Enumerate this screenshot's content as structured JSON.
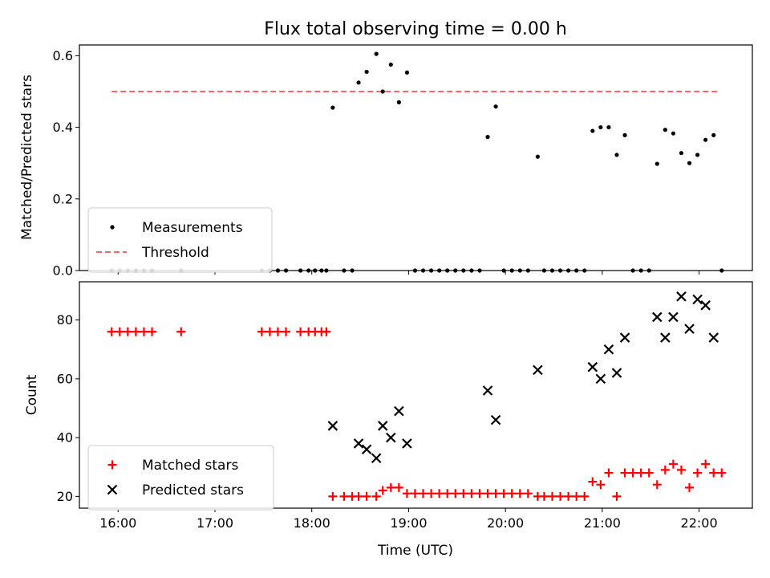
{
  "chart_data": [
    {
      "type": "scatter",
      "title": "Flux total observing time = 0.00 h",
      "xlabel": "",
      "ylabel": "Matched/Predicted stars",
      "xlim": [
        "15:36",
        "22:33"
      ],
      "ylim": [
        0,
        0.63
      ],
      "yticks": [
        0.0,
        0.2,
        0.4,
        0.6
      ],
      "ytick_labels": [
        "0.0",
        "0.2",
        "0.4",
        "0.6"
      ],
      "legend_position": "lower-left",
      "threshold": {
        "name": "Threshold",
        "value": 0.5,
        "x_start": "15:56",
        "x_end": "22:12",
        "color": "#ff6666",
        "style": "dashed"
      },
      "series": [
        {
          "name": "Measurements",
          "color": "#000000",
          "marker": "dot",
          "points": [
            [
              "15:56",
              0
            ],
            [
              "16:01",
              0
            ],
            [
              "16:06",
              0
            ],
            [
              "16:11",
              0
            ],
            [
              "16:16",
              0
            ],
            [
              "16:21",
              0
            ],
            [
              "16:39",
              0
            ],
            [
              "17:29",
              0
            ],
            [
              "17:34",
              0
            ],
            [
              "17:39",
              0
            ],
            [
              "17:44",
              0
            ],
            [
              "17:53",
              0
            ],
            [
              "17:58",
              0
            ],
            [
              "18:02",
              0
            ],
            [
              "18:06",
              0
            ],
            [
              "18:09",
              0
            ],
            [
              "18:13",
              0.455
            ],
            [
              "18:20",
              0
            ],
            [
              "18:25",
              0
            ],
            [
              "18:29",
              0.525
            ],
            [
              "18:34",
              0.555
            ],
            [
              "18:40",
              0.605
            ],
            [
              "18:44",
              0.5
            ],
            [
              "18:49",
              0.575
            ],
            [
              "18:54",
              0.47
            ],
            [
              "18:59",
              0.553
            ],
            [
              "19:04",
              0
            ],
            [
              "19:09",
              0
            ],
            [
              "19:14",
              0
            ],
            [
              "19:19",
              0
            ],
            [
              "19:24",
              0
            ],
            [
              "19:29",
              0
            ],
            [
              "19:34",
              0
            ],
            [
              "19:39",
              0
            ],
            [
              "19:44",
              0
            ],
            [
              "19:49",
              0.373
            ],
            [
              "19:54",
              0.458
            ],
            [
              "19:59",
              0
            ],
            [
              "20:04",
              0
            ],
            [
              "20:09",
              0
            ],
            [
              "20:14",
              0
            ],
            [
              "20:20",
              0.318
            ],
            [
              "20:24",
              0
            ],
            [
              "20:29",
              0
            ],
            [
              "20:34",
              0
            ],
            [
              "20:39",
              0
            ],
            [
              "20:44",
              0
            ],
            [
              "20:49",
              0
            ],
            [
              "20:54",
              0.39
            ],
            [
              "20:59",
              0.4
            ],
            [
              "21:04",
              0.4
            ],
            [
              "21:09",
              0.323
            ],
            [
              "21:14",
              0.378
            ],
            [
              "21:19",
              0
            ],
            [
              "21:24",
              0
            ],
            [
              "21:29",
              0
            ],
            [
              "21:34",
              0.298
            ],
            [
              "21:39",
              0.393
            ],
            [
              "21:44",
              0.383
            ],
            [
              "21:49",
              0.328
            ],
            [
              "21:54",
              0.3
            ],
            [
              "21:59",
              0.323
            ],
            [
              "22:04",
              0.365
            ],
            [
              "22:09",
              0.378
            ],
            [
              "22:14",
              0
            ]
          ]
        }
      ]
    },
    {
      "type": "scatter",
      "title": "",
      "xlabel": "Time (UTC)",
      "ylabel": "Count",
      "xlim": [
        "15:36",
        "22:33"
      ],
      "ylim": [
        16,
        93
      ],
      "xticks": [
        "16:00",
        "17:00",
        "18:00",
        "19:00",
        "20:00",
        "21:00",
        "22:00"
      ],
      "yticks": [
        20,
        40,
        60,
        80
      ],
      "ytick_labels": [
        "20",
        "40",
        "60",
        "80"
      ],
      "legend_position": "lower-left",
      "series": [
        {
          "name": "Matched stars",
          "color": "#ff0000",
          "marker": "plus",
          "points": [
            [
              "15:56",
              76
            ],
            [
              "16:01",
              76
            ],
            [
              "16:06",
              76
            ],
            [
              "16:11",
              76
            ],
            [
              "16:16",
              76
            ],
            [
              "16:21",
              76
            ],
            [
              "16:39",
              76
            ],
            [
              "17:29",
              76
            ],
            [
              "17:34",
              76
            ],
            [
              "17:39",
              76
            ],
            [
              "17:44",
              76
            ],
            [
              "17:53",
              76
            ],
            [
              "17:58",
              76
            ],
            [
              "18:02",
              76
            ],
            [
              "18:06",
              76
            ],
            [
              "18:09",
              76
            ],
            [
              "18:13",
              20
            ],
            [
              "18:20",
              20
            ],
            [
              "18:25",
              20
            ],
            [
              "18:29",
              20
            ],
            [
              "18:34",
              20
            ],
            [
              "18:40",
              20
            ],
            [
              "18:44",
              22
            ],
            [
              "18:49",
              23
            ],
            [
              "18:54",
              23
            ],
            [
              "18:59",
              21
            ],
            [
              "19:04",
              21
            ],
            [
              "19:09",
              21
            ],
            [
              "19:14",
              21
            ],
            [
              "19:19",
              21
            ],
            [
              "19:24",
              21
            ],
            [
              "19:29",
              21
            ],
            [
              "19:34",
              21
            ],
            [
              "19:39",
              21
            ],
            [
              "19:44",
              21
            ],
            [
              "19:49",
              21
            ],
            [
              "19:54",
              21
            ],
            [
              "19:59",
              21
            ],
            [
              "20:04",
              21
            ],
            [
              "20:09",
              21
            ],
            [
              "20:14",
              21
            ],
            [
              "20:20",
              20
            ],
            [
              "20:24",
              20
            ],
            [
              "20:29",
              20
            ],
            [
              "20:34",
              20
            ],
            [
              "20:39",
              20
            ],
            [
              "20:44",
              20
            ],
            [
              "20:49",
              20
            ],
            [
              "20:54",
              25
            ],
            [
              "20:59",
              24
            ],
            [
              "21:04",
              28
            ],
            [
              "21:09",
              20
            ],
            [
              "21:14",
              28
            ],
            [
              "21:19",
              28
            ],
            [
              "21:24",
              28
            ],
            [
              "21:29",
              28
            ],
            [
              "21:34",
              24
            ],
            [
              "21:39",
              29
            ],
            [
              "21:44",
              31
            ],
            [
              "21:49",
              29
            ],
            [
              "21:54",
              23
            ],
            [
              "21:59",
              28
            ],
            [
              "22:04",
              31
            ],
            [
              "22:09",
              28
            ],
            [
              "22:14",
              28
            ]
          ]
        },
        {
          "name": "Predicted stars",
          "color": "#000000",
          "marker": "x",
          "points": [
            [
              "18:13",
              44
            ],
            [
              "18:29",
              38
            ],
            [
              "18:34",
              36
            ],
            [
              "18:40",
              33
            ],
            [
              "18:44",
              44
            ],
            [
              "18:49",
              40
            ],
            [
              "18:54",
              49
            ],
            [
              "18:59",
              38
            ],
            [
              "19:49",
              56
            ],
            [
              "19:54",
              46
            ],
            [
              "20:20",
              63
            ],
            [
              "20:54",
              64
            ],
            [
              "20:59",
              60
            ],
            [
              "21:04",
              70
            ],
            [
              "21:09",
              62
            ],
            [
              "21:14",
              74
            ],
            [
              "21:34",
              81
            ],
            [
              "21:39",
              74
            ],
            [
              "21:44",
              81
            ],
            [
              "21:49",
              88
            ],
            [
              "21:54",
              77
            ],
            [
              "21:59",
              87
            ],
            [
              "22:04",
              85
            ],
            [
              "22:09",
              74
            ]
          ]
        }
      ]
    }
  ]
}
